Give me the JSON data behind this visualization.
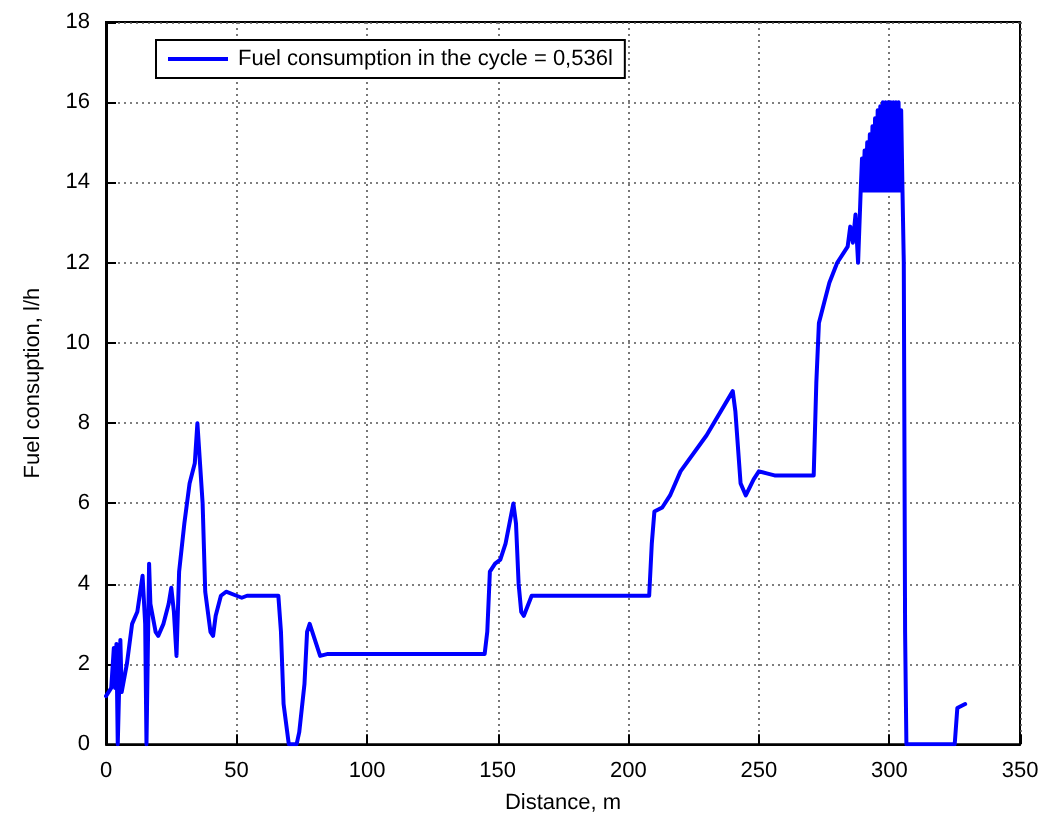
{
  "chart_data": {
    "type": "line",
    "xlabel": "Distance, m",
    "ylabel": "Fuel consuption, l/h",
    "xlim": [
      0,
      350
    ],
    "xticks": [
      0,
      50,
      100,
      150,
      200,
      250,
      300,
      350
    ],
    "ylim": [
      0,
      18
    ],
    "yticks": [
      0,
      2,
      4,
      6,
      8,
      10,
      12,
      14,
      16,
      18
    ],
    "grid": true,
    "legend": "top left",
    "marker": "none",
    "line_style": "solid",
    "series": [
      {
        "name": "Fuel consumption in the cycle = 0,536l",
        "color": "#0000ff",
        "x": [
          0,
          2,
          3,
          3.5,
          4,
          4.5,
          5,
          5.5,
          6,
          8,
          10,
          12,
          14,
          15,
          15.5,
          16,
          16.5,
          17,
          19,
          20,
          22,
          24,
          25,
          26,
          27,
          28,
          30,
          32,
          34,
          35,
          36,
          37,
          38,
          40,
          41,
          42,
          44,
          46,
          50,
          52,
          54,
          66,
          67,
          68,
          70,
          73,
          74,
          76,
          77,
          78,
          80,
          82,
          85,
          145,
          146,
          147,
          149,
          151,
          153,
          156,
          157,
          158,
          159,
          160,
          163,
          165,
          208,
          209,
          210,
          213,
          216,
          220,
          230,
          240,
          241,
          243,
          245,
          248,
          250,
          253,
          256,
          271,
          272,
          273,
          275,
          277,
          280,
          284,
          285,
          286,
          287,
          288,
          289,
          289.5,
          290,
          290.5,
          291,
          291.5,
          292,
          292.5,
          293,
          293.5,
          294,
          294.5,
          295,
          295.5,
          296,
          296.5,
          297,
          297.5,
          298,
          298.5,
          299,
          299.5,
          300,
          300.5,
          301,
          301.5,
          302,
          302.5,
          303,
          303.5,
          304,
          304.5,
          305,
          305.5,
          306,
          306.5,
          325,
          326,
          329
        ],
        "values": [
          1.2,
          1.4,
          2.4,
          1.4,
          2.5,
          0,
          0,
          2.6,
          1.3,
          2,
          3,
          3.3,
          4.2,
          3,
          0,
          0,
          4.5,
          3.5,
          2.8,
          2.7,
          3,
          3.5,
          3.9,
          3.3,
          2.2,
          4.3,
          5.5,
          6.5,
          7,
          8,
          7,
          6,
          3.8,
          2.8,
          2.7,
          3.2,
          3.7,
          3.8,
          3.7,
          3.65,
          3.7,
          3.7,
          2.8,
          1,
          0,
          0,
          0.3,
          1.5,
          2.8,
          3,
          2.6,
          2.2,
          2.25,
          2.25,
          2.8,
          4.3,
          4.5,
          4.6,
          5,
          6,
          5.5,
          4,
          3.3,
          3.2,
          3.7,
          3.7,
          3.7,
          5,
          5.8,
          5.9,
          6.2,
          6.8,
          7.7,
          8.8,
          8.3,
          6.5,
          6.2,
          6.6,
          6.8,
          6.75,
          6.7,
          6.7,
          9,
          10.5,
          11,
          11.5,
          12,
          12.4,
          12.9,
          12.5,
          13.2,
          12,
          13.8,
          14.6,
          13.8,
          14.8,
          13.8,
          15,
          13.8,
          15.2,
          13.8,
          15.4,
          13.8,
          15.6,
          13.8,
          15.8,
          13.8,
          15.9,
          13.8,
          16,
          13.8,
          16,
          13.8,
          16,
          13.8,
          16,
          13.8,
          16,
          13.8,
          16,
          13.8,
          16,
          13.8,
          15.8,
          13.8,
          12,
          2.8,
          0,
          0,
          0.9,
          1
        ]
      }
    ]
  }
}
